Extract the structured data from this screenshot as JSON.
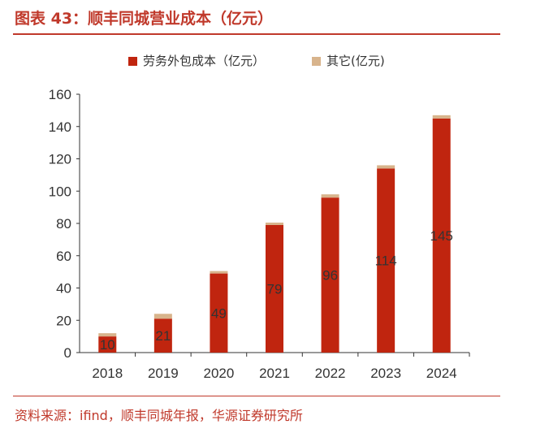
{
  "title": "图表 43：顺丰同城营业成本（亿元）",
  "source": "资料来源：ifind，顺丰同城年报，华源证券研究所",
  "colors": {
    "primary": "#c0250f",
    "secondary": "#d8b48c",
    "accent": "#c0392b"
  },
  "chart_data": {
    "type": "bar",
    "stacked": true,
    "categories": [
      "2018",
      "2019",
      "2020",
      "2021",
      "2022",
      "2023",
      "2024"
    ],
    "series": [
      {
        "name": "劳务外包成本（亿元）",
        "values": [
          10,
          21,
          49,
          79,
          96,
          114,
          145
        ],
        "labels": [
          "10",
          "21",
          "49",
          "79",
          "96",
          "114",
          "145"
        ]
      },
      {
        "name": "其它(亿元)",
        "values": [
          2,
          3,
          1.5,
          1.5,
          2,
          2,
          2
        ]
      }
    ],
    "yticks": [
      "0",
      "20",
      "40",
      "60",
      "80",
      "100",
      "120",
      "140",
      "160"
    ],
    "ylim": [
      0,
      160
    ],
    "legend_position": "top-center",
    "grid": false
  }
}
